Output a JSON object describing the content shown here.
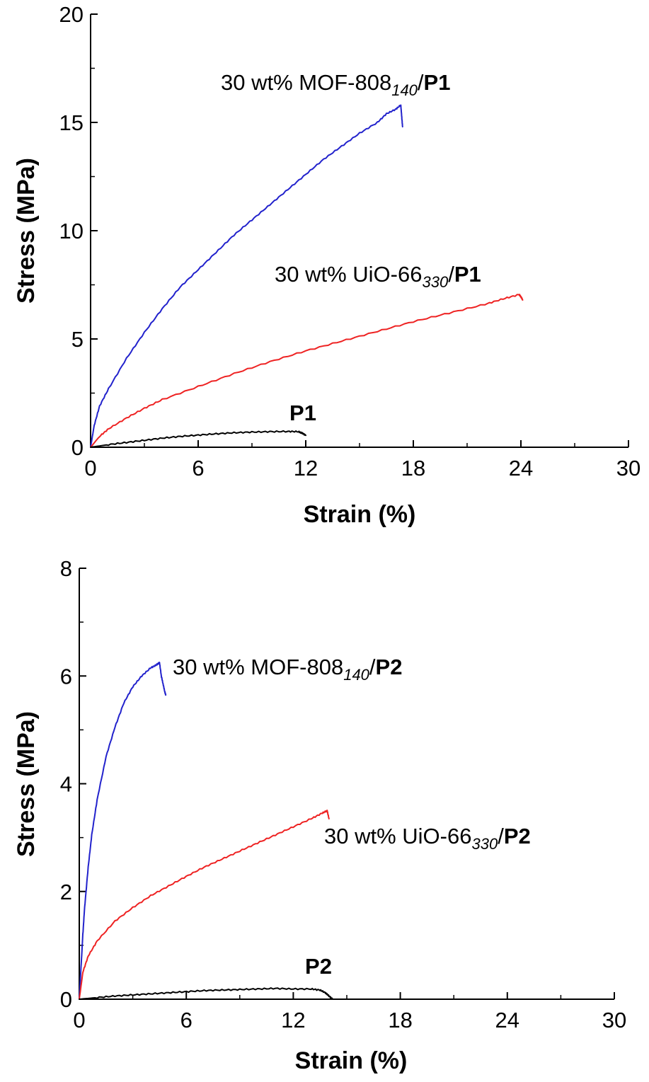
{
  "chart_data": [
    {
      "type": "line",
      "xlabel": "Strain (%)",
      "ylabel": "Stress (MPa)",
      "xlim": [
        0,
        30
      ],
      "ylim": [
        0,
        20
      ],
      "xticks": [
        0,
        6,
        12,
        18,
        24,
        30
      ],
      "yticks": [
        0,
        5,
        10,
        15,
        20
      ],
      "grid": false,
      "series": [
        {
          "color": "#2222cc",
          "label": {
            "main": "30 wt% MOF-808",
            "sub": "140",
            "tail": "P1"
          },
          "x": [
            0,
            0.2,
            0.5,
            1,
            2,
            3,
            4,
            5,
            6,
            7,
            8,
            9,
            10,
            11,
            12,
            13,
            14,
            15,
            16,
            16.5,
            17,
            17.3,
            17.35,
            17.4
          ],
          "y": [
            0,
            1.0,
            1.9,
            2.7,
            4.1,
            5.3,
            6.4,
            7.4,
            8.2,
            9.0,
            9.8,
            10.5,
            11.2,
            11.9,
            12.6,
            13.3,
            13.9,
            14.5,
            15.0,
            15.4,
            15.6,
            15.8,
            15.3,
            14.8
          ]
        },
        {
          "color": "#ee2222",
          "label": {
            "main": "30 wt% UiO-66",
            "sub": "330",
            "tail": "P1"
          },
          "x": [
            0,
            0.5,
            1,
            2,
            3,
            4,
            6,
            8,
            10,
            12,
            14,
            16,
            18,
            20,
            22,
            23,
            23.9,
            24.0,
            24.1
          ],
          "y": [
            0,
            0.5,
            0.85,
            1.35,
            1.8,
            2.2,
            2.8,
            3.4,
            3.95,
            4.45,
            4.9,
            5.35,
            5.8,
            6.2,
            6.6,
            6.85,
            7.05,
            6.95,
            6.8
          ]
        },
        {
          "color": "#000000",
          "label": {
            "main": "",
            "sub": "",
            "tail": "P1"
          },
          "x": [
            0,
            1,
            2,
            3,
            4,
            5,
            6,
            7,
            8,
            9,
            10,
            11,
            11.6,
            11.8,
            12.0
          ],
          "y": [
            0,
            0.12,
            0.22,
            0.32,
            0.42,
            0.5,
            0.56,
            0.62,
            0.67,
            0.7,
            0.72,
            0.73,
            0.72,
            0.65,
            0.55
          ]
        }
      ]
    },
    {
      "type": "line",
      "xlabel": "Strain (%)",
      "ylabel": "Stress (MPa)",
      "xlim": [
        0,
        30
      ],
      "ylim": [
        0,
        8
      ],
      "xticks": [
        0,
        6,
        12,
        18,
        24,
        30
      ],
      "yticks": [
        0,
        2,
        4,
        6,
        8
      ],
      "grid": false,
      "series": [
        {
          "color": "#2222cc",
          "label": {
            "main": "30 wt% MOF-808",
            "sub": "140",
            "tail": "P2"
          },
          "x": [
            0,
            0.1,
            0.2,
            0.3,
            0.5,
            0.7,
            1.0,
            1.5,
            2.0,
            2.5,
            3.0,
            3.5,
            4.0,
            4.3,
            4.5,
            4.6,
            4.7,
            4.8,
            4.85
          ],
          "y": [
            0,
            0.6,
            1.2,
            1.7,
            2.45,
            3.05,
            3.7,
            4.5,
            5.05,
            5.5,
            5.8,
            6.0,
            6.15,
            6.2,
            6.25,
            6.0,
            5.85,
            5.7,
            5.65
          ]
        },
        {
          "color": "#ee2222",
          "label": {
            "main": "30 wt% UiO-66",
            "sub": "330",
            "tail": "P2"
          },
          "x": [
            0,
            0.2,
            0.5,
            1,
            2,
            3,
            4,
            5,
            6,
            7,
            8,
            9,
            10,
            11,
            12,
            13,
            13.6,
            13.9,
            14.0
          ],
          "y": [
            0,
            0.5,
            0.8,
            1.08,
            1.45,
            1.7,
            1.92,
            2.1,
            2.28,
            2.45,
            2.6,
            2.75,
            2.9,
            3.05,
            3.2,
            3.35,
            3.45,
            3.5,
            3.35
          ]
        },
        {
          "color": "#000000",
          "label": {
            "main": "",
            "sub": "",
            "tail": "P2"
          },
          "x": [
            0,
            1,
            2,
            3,
            4,
            5,
            6,
            7,
            8,
            9,
            10,
            11,
            12,
            13,
            13.5,
            13.8,
            14.0,
            14.2
          ],
          "y": [
            0,
            0.03,
            0.06,
            0.08,
            0.1,
            0.12,
            0.14,
            0.16,
            0.17,
            0.18,
            0.19,
            0.2,
            0.19,
            0.19,
            0.17,
            0.12,
            0.06,
            0
          ]
        }
      ]
    }
  ]
}
